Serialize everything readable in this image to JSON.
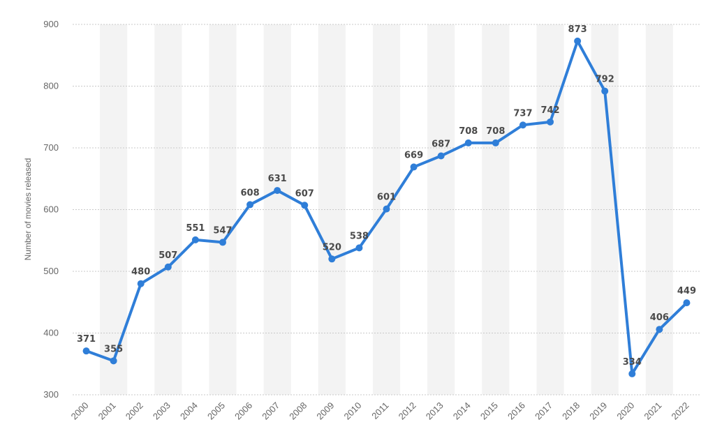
{
  "chart_data": {
    "type": "line",
    "title": "",
    "xlabel": "",
    "ylabel": "Number of movies released",
    "ylim": [
      300,
      900
    ],
    "yticks": [
      300,
      400,
      500,
      600,
      700,
      800,
      900
    ],
    "categories": [
      "2000",
      "2001",
      "2002",
      "2003",
      "2004",
      "2005",
      "2006",
      "2007",
      "2008",
      "2009",
      "2010",
      "2011",
      "2012",
      "2013",
      "2014",
      "2015",
      "2016",
      "2017",
      "2018",
      "2019",
      "2020",
      "2021",
      "2022"
    ],
    "series": [
      {
        "values": [
          371,
          355,
          480,
          507,
          551,
          547,
          608,
          631,
          607,
          520,
          538,
          601,
          669,
          687,
          708,
          708,
          737,
          742,
          873,
          792,
          334,
          406,
          449
        ]
      }
    ],
    "grid": true,
    "legend": "none",
    "colors": {
      "line": "#2f7ed8",
      "band": "#f3f3f3",
      "grid": "#c8c8c8"
    }
  }
}
